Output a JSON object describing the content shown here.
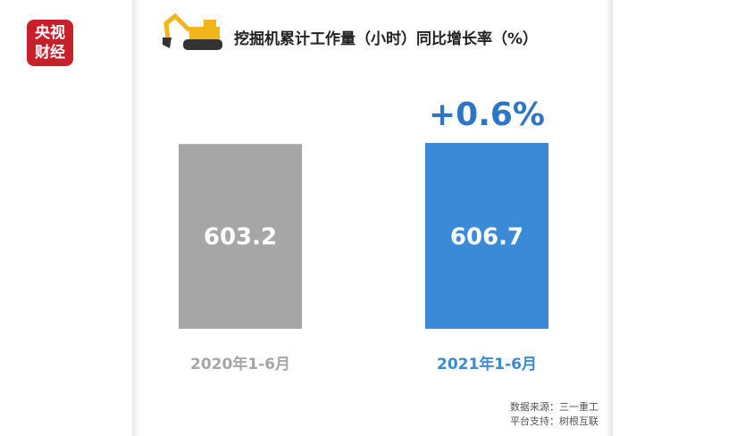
{
  "chart_data": {
    "type": "bar",
    "title": "挖掘机累计工作量（小时）同比增长率（%）",
    "annotation": "+0.6%",
    "categories": [
      "2020年1-6月",
      "2021年1-6月"
    ],
    "values": [
      603.2,
      606.7
    ],
    "colors": [
      "#a6a6a6",
      "#3a8ad8"
    ],
    "source": [
      "数据来源：三一重工",
      "平台支持：树根互联"
    ],
    "logo": [
      "央视",
      "财经"
    ]
  }
}
